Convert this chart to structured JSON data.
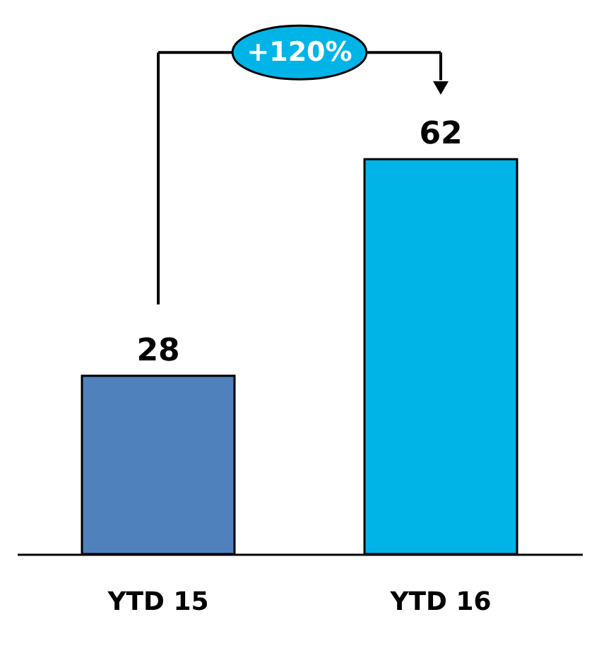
{
  "chart_data": {
    "type": "bar",
    "categories": [
      "YTD 15",
      "YTD 16"
    ],
    "values": [
      28,
      62
    ],
    "colors": [
      "#4f81bd",
      "#00b4e8"
    ],
    "data_labels": true,
    "grid": false,
    "tick_labels": "x",
    "annotations": [
      "+120%"
    ]
  }
}
